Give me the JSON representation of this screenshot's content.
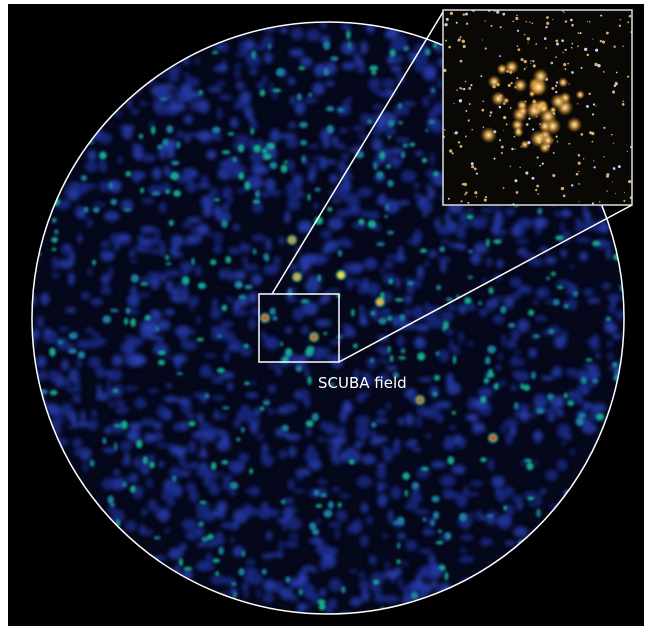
{
  "label": "SCUBA field"
}
